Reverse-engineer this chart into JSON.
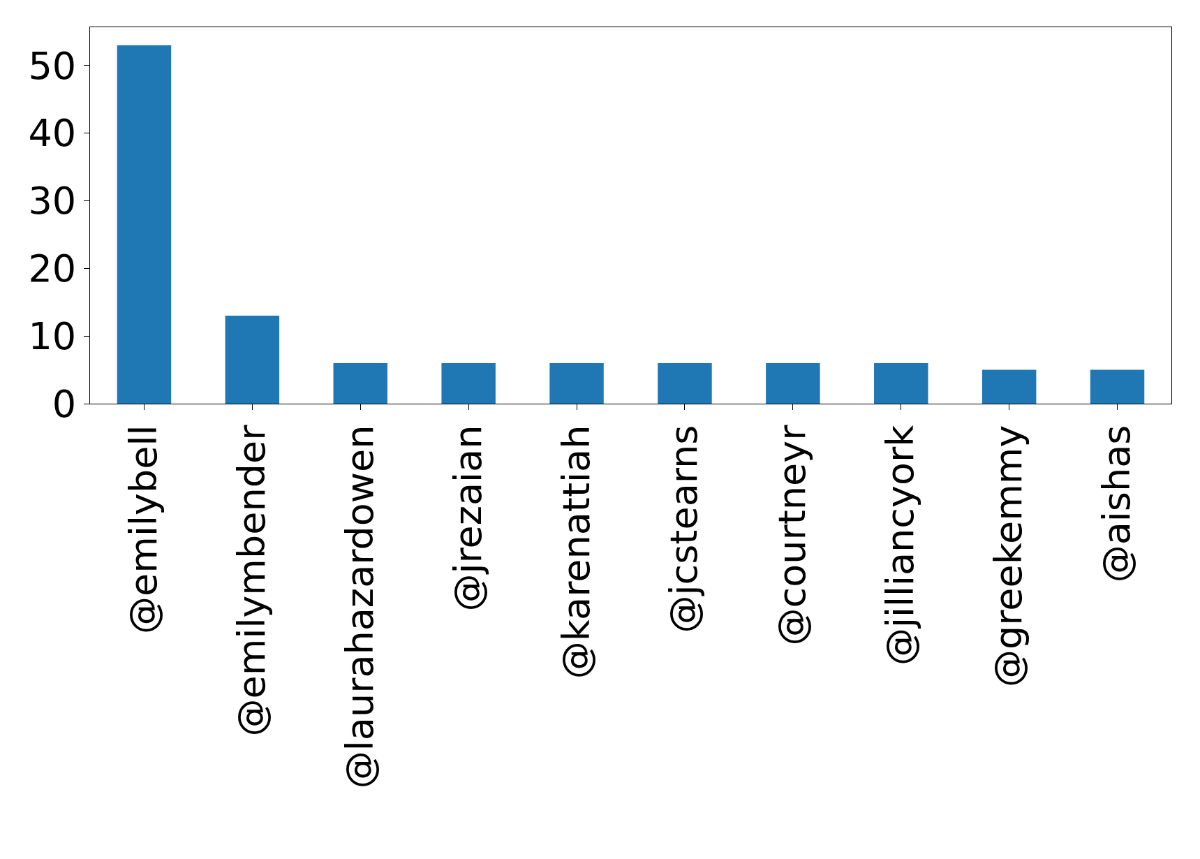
{
  "chart_data": {
    "type": "bar",
    "categories": [
      "@emilybell",
      "@emilymbender",
      "@laurahazardowen",
      "@jrezaian",
      "@karenattiah",
      "@jcstearns",
      "@courtneyr",
      "@jilliancyork",
      "@greekemmy",
      "@aishas"
    ],
    "values": [
      53,
      13,
      6,
      6,
      6,
      6,
      6,
      6,
      5,
      5
    ],
    "color": "#1f77b4",
    "ylim": [
      0,
      55.65
    ],
    "yticks": [
      0,
      10,
      20,
      30,
      40,
      50
    ]
  }
}
